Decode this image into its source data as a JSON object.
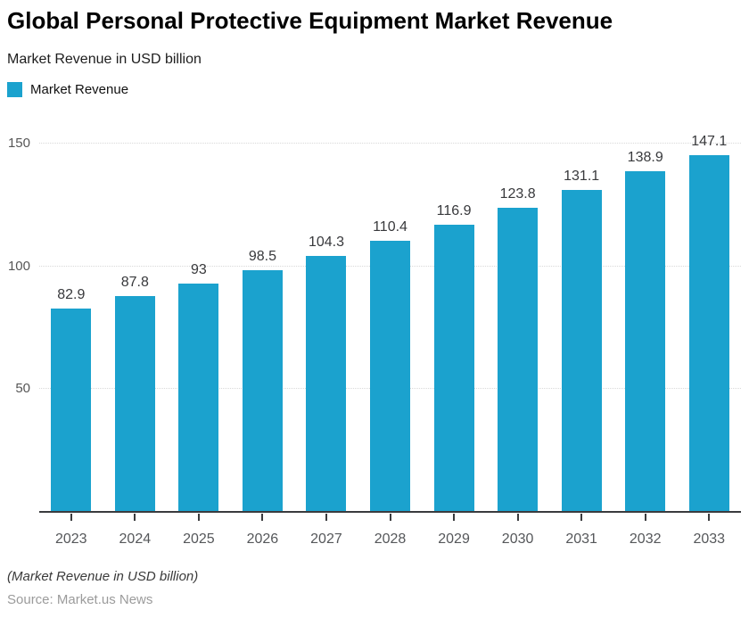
{
  "header": {
    "title": "Global Personal Protective Equipment Market Revenue",
    "subtitle": "Market Revenue in USD billion"
  },
  "legend": {
    "label": "Market Revenue",
    "swatch_color": "#1BA2CE"
  },
  "chart_data": {
    "type": "bar",
    "title": "Global Personal Protective Equipment Market Revenue",
    "subtitle": "Market Revenue in USD billion",
    "series_name": "Market Revenue",
    "categories": [
      "2023",
      "2024",
      "2025",
      "2026",
      "2027",
      "2028",
      "2029",
      "2030",
      "2031",
      "2032",
      "2033"
    ],
    "values": [
      82.9,
      87.8,
      93,
      98.5,
      104.3,
      110.4,
      116.9,
      123.8,
      131.1,
      138.9,
      147.1
    ],
    "value_labels": [
      "82.9",
      "87.8",
      "93",
      "98.5",
      "104.3",
      "110.4",
      "116.9",
      "123.8",
      "131.1",
      "138.9",
      "147.1"
    ],
    "xlabel": "",
    "ylabel": "Market Revenue in USD billion",
    "ylim": [
      0,
      154
    ],
    "yticks": [
      50,
      100,
      150
    ],
    "bar_color": "#1BA2CE",
    "grid": "horizontal-dotted",
    "legend_position": "top-left"
  },
  "footer": {
    "note": "(Market Revenue in USD billion)",
    "source": "Source: Market.us News"
  }
}
